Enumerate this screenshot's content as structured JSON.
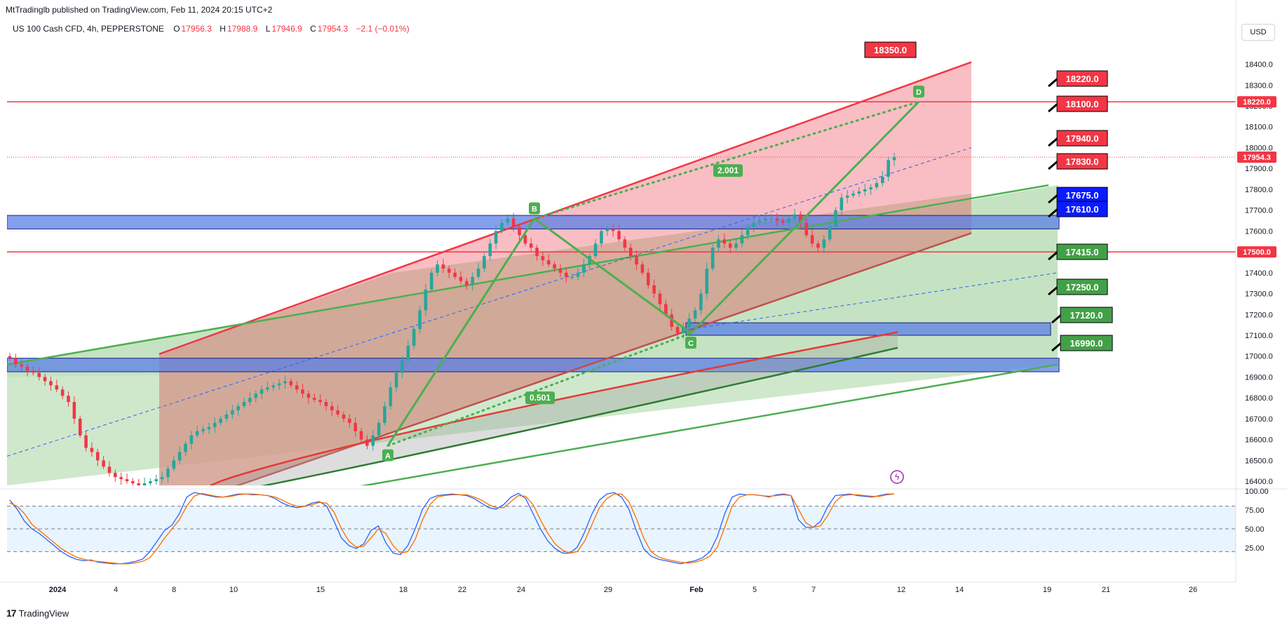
{
  "header": {
    "published_line": "MtTradinglb published on TradingView.com, Feb 11, 2024 20:15 UTC+2"
  },
  "legend": {
    "symbol": "US 100 Cash CFD, 4h, PEPPERSTONE",
    "o_label": "O",
    "o_value": "17956.3",
    "h_label": "H",
    "h_value": "17988.9",
    "l_label": "L",
    "l_value": "17946.9",
    "c_label": "C",
    "c_value": "17954.3",
    "change": "−2.1 (−0.01%)"
  },
  "currency_button": "USD",
  "footer": {
    "brand": "TradingView"
  },
  "colors": {
    "up": "#26a69a",
    "down": "#f23645",
    "red_line": "#f23645",
    "blue_zone": "#5b7fe6",
    "green_fill": "#a8d5a2",
    "red_fill": "#f6a3ab",
    "pattern": "#4caf50",
    "ma_green": "#2e7d32",
    "stoch_k": "#2962ff",
    "stoch_d": "#ff6d00"
  },
  "chart_data": [
    {
      "type": "candlestick",
      "timeframe": "4h",
      "x_tick_labels": [
        "2024",
        "4",
        "8",
        "10",
        "15",
        "18",
        "22",
        "24",
        "29",
        "Feb",
        "5",
        "7",
        "12",
        "14",
        "19",
        "21",
        "26"
      ],
      "y_tick_labels": [
        "18400.0",
        "18300.0",
        "18200.0",
        "18100.0",
        "18000.0",
        "17900.0",
        "17800.0",
        "17700.0",
        "17600.0",
        "17500.0",
        "17400.0",
        "17300.0",
        "17200.0",
        "17100.0",
        "17000.0",
        "16900.0",
        "16800.0",
        "16700.0",
        "16600.0",
        "16500.0",
        "16400.0"
      ],
      "ylim": [
        16380,
        18560
      ],
      "last_price": "17954.3",
      "price_axis_badges": [
        {
          "value": "18220.0",
          "color": "#f23645"
        },
        {
          "value": "17954.3",
          "color": "#f23645"
        },
        {
          "value": "17500.0",
          "color": "#f23645"
        }
      ],
      "horizontal_lines": [
        18220,
        17500
      ],
      "zones": [
        {
          "from": 17610,
          "to": 17675,
          "color": "#5b7fe6"
        },
        {
          "from": 17100,
          "to": 17160,
          "color": "#5b7fe6"
        },
        {
          "from": 16925,
          "to": 16990,
          "color": "#5b7fe6"
        }
      ],
      "level_labels": [
        {
          "value": "18350.0",
          "color": "red"
        },
        {
          "value": "18220.0",
          "color": "red"
        },
        {
          "value": "18100.0",
          "color": "red"
        },
        {
          "value": "17940.0",
          "color": "red"
        },
        {
          "value": "17830.0",
          "color": "red"
        },
        {
          "value": "17675.0",
          "color": "blue"
        },
        {
          "value": "17610.0",
          "color": "blue"
        },
        {
          "value": "17415.0",
          "color": "green"
        },
        {
          "value": "17250.0",
          "color": "green"
        },
        {
          "value": "17120.0",
          "color": "green"
        },
        {
          "value": "16990.0",
          "color": "green"
        }
      ],
      "pattern_points": [
        {
          "label": "A",
          "price": 16570
        },
        {
          "label": "B",
          "price": 17660
        },
        {
          "label": "C",
          "price": 17110
        },
        {
          "label": "D",
          "price": 18220
        }
      ],
      "ratios": [
        "0.501",
        "2.001"
      ],
      "close_series": [
        16990,
        16960,
        16950,
        16930,
        16920,
        16900,
        16880,
        16860,
        16840,
        16810,
        16780,
        16700,
        16620,
        16560,
        16540,
        16500,
        16470,
        16440,
        16420,
        16410,
        16400,
        16390,
        16380,
        16390,
        16400,
        16410,
        16420,
        16460,
        16500,
        16540,
        16580,
        16620,
        16640,
        16650,
        16660,
        16680,
        16700,
        16720,
        16740,
        16760,
        16780,
        16800,
        16820,
        16840,
        16850,
        16860,
        16870,
        16880,
        16860,
        16840,
        16820,
        16800,
        16790,
        16780,
        16760,
        16740,
        16720,
        16700,
        16680,
        16640,
        16600,
        16570,
        16620,
        16680,
        16760,
        16850,
        16920,
        16980,
        17050,
        17130,
        17220,
        17320,
        17400,
        17440,
        17420,
        17400,
        17380,
        17360,
        17340,
        17380,
        17420,
        17480,
        17540,
        17600,
        17640,
        17660,
        17620,
        17580,
        17540,
        17520,
        17480,
        17460,
        17440,
        17420,
        17400,
        17380,
        17380,
        17400,
        17440,
        17480,
        17540,
        17600,
        17610,
        17600,
        17560,
        17520,
        17480,
        17440,
        17400,
        17340,
        17300,
        17250,
        17200,
        17140,
        17110,
        17140,
        17180,
        17220,
        17300,
        17420,
        17520,
        17560,
        17540,
        17520,
        17540,
        17580,
        17620,
        17640,
        17650,
        17660,
        17660,
        17650,
        17640,
        17660,
        17680,
        17640,
        17580,
        17540,
        17520,
        17560,
        17620,
        17700,
        17760,
        17770,
        17780,
        17790,
        17800,
        17810,
        17830,
        17860,
        17940,
        17954
      ]
    },
    {
      "type": "line",
      "title": "",
      "y_tick_labels": [
        "100.00",
        "75.00",
        "50.00",
        "25.00"
      ],
      "ylim": [
        0,
        100
      ],
      "series": [
        {
          "color": "#2962ff",
          "values": [
            88,
            76,
            60,
            50,
            44,
            36,
            28,
            20,
            14,
            10,
            8,
            9,
            6,
            5,
            4,
            4,
            5,
            7,
            10,
            20,
            34,
            48,
            55,
            70,
            92,
            98,
            96,
            94,
            92,
            92,
            94,
            96,
            96,
            95,
            95,
            94,
            90,
            84,
            80,
            78,
            80,
            84,
            86,
            80,
            60,
            38,
            28,
            24,
            30,
            48,
            54,
            32,
            18,
            16,
            28,
            50,
            76,
            90,
            94,
            95,
            96,
            95,
            94,
            90,
            84,
            78,
            76,
            82,
            92,
            97,
            90,
            70,
            50,
            34,
            24,
            18,
            18,
            26,
            46,
            70,
            88,
            96,
            98,
            92,
            76,
            48,
            24,
            14,
            10,
            8,
            6,
            4,
            6,
            8,
            12,
            20,
            40,
            70,
            92,
            96,
            95,
            95,
            94,
            92,
            95,
            96,
            94,
            62,
            52,
            52,
            60,
            80,
            94,
            95,
            96,
            94,
            93,
            92,
            94,
            96,
            96
          ]
        },
        {
          "color": "#ff6d00",
          "values": [
            84,
            80,
            70,
            56,
            48,
            40,
            32,
            24,
            18,
            13,
            10,
            8,
            7,
            6,
            5,
            4,
            4,
            5,
            7,
            12,
            24,
            38,
            50,
            62,
            80,
            93,
            97,
            95,
            93,
            92,
            93,
            95,
            96,
            96,
            95,
            94,
            92,
            88,
            83,
            80,
            80,
            82,
            85,
            84,
            72,
            50,
            34,
            26,
            27,
            38,
            50,
            44,
            28,
            18,
            20,
            36,
            62,
            82,
            92,
            94,
            95,
            95,
            95,
            92,
            88,
            82,
            78,
            78,
            86,
            94,
            93,
            82,
            62,
            44,
            30,
            22,
            18,
            20,
            34,
            56,
            78,
            90,
            96,
            96,
            86,
            64,
            38,
            20,
            13,
            10,
            8,
            6,
            5,
            6,
            9,
            14,
            26,
            52,
            80,
            92,
            95,
            95,
            94,
            93,
            94,
            95,
            94,
            76,
            58,
            52,
            54,
            68,
            86,
            94,
            95,
            95,
            94,
            93,
            93,
            95,
            96
          ]
        }
      ]
    }
  ]
}
